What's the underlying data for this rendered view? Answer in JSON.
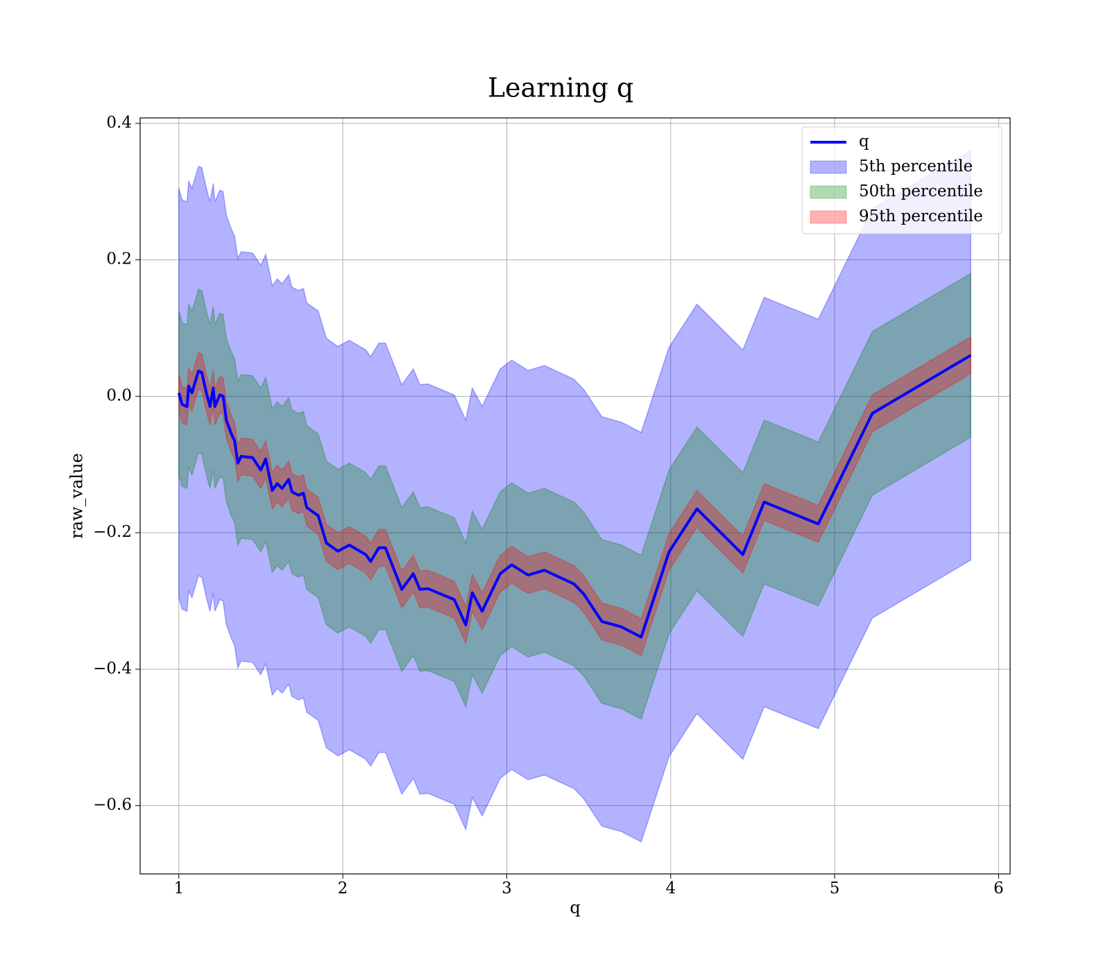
{
  "chart_data": {
    "type": "line_band",
    "title": "Learning q",
    "xlabel": "q",
    "ylabel": "raw_value",
    "x": [
      1.0,
      1.02,
      1.05,
      1.06,
      1.08,
      1.12,
      1.14,
      1.17,
      1.19,
      1.21,
      1.22,
      1.25,
      1.27,
      1.29,
      1.32,
      1.34,
      1.36,
      1.38,
      1.45,
      1.5,
      1.53,
      1.57,
      1.6,
      1.63,
      1.67,
      1.69,
      1.73,
      1.76,
      1.78,
      1.85,
      1.9,
      1.97,
      2.04,
      2.14,
      2.17,
      2.22,
      2.26,
      2.36,
      2.43,
      2.47,
      2.52,
      2.68,
      2.75,
      2.79,
      2.85,
      2.96,
      3.03,
      3.13,
      3.23,
      3.41,
      3.47,
      3.58,
      3.7,
      3.82,
      3.99,
      4.16,
      4.44,
      4.57,
      4.9,
      5.23,
      5.83
    ],
    "series": [
      {
        "name": "q",
        "color": "#0000ff",
        "values": [
          0.005,
          -0.012,
          -0.015,
          0.015,
          0.005,
          0.037,
          0.035,
          0.003,
          -0.015,
          0.012,
          -0.015,
          0.002,
          0.0,
          -0.035,
          -0.055,
          -0.065,
          -0.098,
          -0.088,
          -0.09,
          -0.108,
          -0.092,
          -0.138,
          -0.128,
          -0.135,
          -0.122,
          -0.14,
          -0.145,
          -0.142,
          -0.163,
          -0.175,
          -0.215,
          -0.227,
          -0.218,
          -0.232,
          -0.242,
          -0.222,
          -0.222,
          -0.283,
          -0.26,
          -0.283,
          -0.282,
          -0.298,
          -0.335,
          -0.288,
          -0.315,
          -0.26,
          -0.247,
          -0.262,
          -0.255,
          -0.275,
          -0.29,
          -0.33,
          -0.338,
          -0.353,
          -0.228,
          -0.165,
          -0.232,
          -0.155,
          -0.187,
          -0.025,
          0.06
        ]
      }
    ],
    "bands": [
      {
        "name": "5th percentile",
        "color": "#0000ff",
        "upper": [
          0.305,
          0.288,
          0.285,
          0.315,
          0.305,
          0.337,
          0.335,
          0.303,
          0.285,
          0.312,
          0.285,
          0.302,
          0.3,
          0.265,
          0.245,
          0.235,
          0.202,
          0.212,
          0.21,
          0.192,
          0.208,
          0.162,
          0.172,
          0.165,
          0.178,
          0.16,
          0.155,
          0.158,
          0.137,
          0.125,
          0.085,
          0.073,
          0.082,
          0.068,
          0.058,
          0.078,
          0.078,
          0.017,
          0.04,
          0.017,
          0.018,
          0.002,
          -0.035,
          0.012,
          -0.015,
          0.04,
          0.053,
          0.038,
          0.045,
          0.025,
          0.01,
          -0.03,
          -0.038,
          -0.053,
          0.072,
          0.135,
          0.068,
          0.145,
          0.113,
          0.275,
          0.36
        ],
        "lower": [
          -0.295,
          -0.312,
          -0.315,
          -0.285,
          -0.295,
          -0.263,
          -0.265,
          -0.297,
          -0.315,
          -0.288,
          -0.315,
          -0.298,
          -0.3,
          -0.335,
          -0.355,
          -0.365,
          -0.398,
          -0.388,
          -0.39,
          -0.408,
          -0.392,
          -0.438,
          -0.428,
          -0.435,
          -0.422,
          -0.44,
          -0.445,
          -0.442,
          -0.463,
          -0.475,
          -0.515,
          -0.527,
          -0.518,
          -0.532,
          -0.542,
          -0.522,
          -0.522,
          -0.583,
          -0.56,
          -0.583,
          -0.582,
          -0.598,
          -0.635,
          -0.588,
          -0.615,
          -0.56,
          -0.547,
          -0.562,
          -0.555,
          -0.575,
          -0.59,
          -0.63,
          -0.638,
          -0.653,
          -0.528,
          -0.465,
          -0.532,
          -0.455,
          -0.487,
          -0.325,
          -0.24
        ]
      },
      {
        "name": "50th percentile",
        "color": "#008000",
        "upper": [
          0.125,
          0.108,
          0.105,
          0.135,
          0.125,
          0.157,
          0.155,
          0.123,
          0.105,
          0.132,
          0.105,
          0.122,
          0.12,
          0.085,
          0.065,
          0.055,
          0.022,
          0.032,
          0.03,
          0.012,
          0.028,
          -0.018,
          -0.008,
          -0.015,
          -0.002,
          -0.02,
          -0.025,
          -0.022,
          -0.043,
          -0.055,
          -0.095,
          -0.107,
          -0.098,
          -0.112,
          -0.122,
          -0.102,
          -0.102,
          -0.163,
          -0.14,
          -0.163,
          -0.162,
          -0.178,
          -0.215,
          -0.168,
          -0.195,
          -0.14,
          -0.127,
          -0.142,
          -0.135,
          -0.155,
          -0.17,
          -0.21,
          -0.218,
          -0.233,
          -0.108,
          -0.045,
          -0.112,
          -0.035,
          -0.067,
          0.095,
          0.18
        ],
        "lower": [
          -0.115,
          -0.132,
          -0.135,
          -0.105,
          -0.115,
          -0.083,
          -0.085,
          -0.117,
          -0.135,
          -0.108,
          -0.135,
          -0.118,
          -0.12,
          -0.155,
          -0.175,
          -0.185,
          -0.218,
          -0.208,
          -0.21,
          -0.228,
          -0.212,
          -0.258,
          -0.248,
          -0.255,
          -0.242,
          -0.26,
          -0.265,
          -0.262,
          -0.283,
          -0.295,
          -0.335,
          -0.347,
          -0.338,
          -0.352,
          -0.362,
          -0.342,
          -0.342,
          -0.403,
          -0.38,
          -0.403,
          -0.402,
          -0.418,
          -0.455,
          -0.408,
          -0.435,
          -0.38,
          -0.367,
          -0.382,
          -0.375,
          -0.395,
          -0.41,
          -0.45,
          -0.458,
          -0.473,
          -0.348,
          -0.285,
          -0.352,
          -0.275,
          -0.307,
          -0.145,
          -0.06
        ]
      },
      {
        "name": "95th percentile",
        "color": "#ff0000",
        "upper": [
          0.032,
          0.015,
          0.012,
          0.042,
          0.032,
          0.064,
          0.062,
          0.03,
          0.012,
          0.039,
          0.012,
          0.029,
          0.027,
          -0.008,
          -0.028,
          -0.038,
          -0.071,
          -0.061,
          -0.063,
          -0.081,
          -0.065,
          -0.111,
          -0.101,
          -0.108,
          -0.095,
          -0.113,
          -0.118,
          -0.115,
          -0.136,
          -0.148,
          -0.188,
          -0.2,
          -0.191,
          -0.205,
          -0.215,
          -0.195,
          -0.195,
          -0.256,
          -0.233,
          -0.256,
          -0.255,
          -0.271,
          -0.308,
          -0.261,
          -0.288,
          -0.233,
          -0.22,
          -0.235,
          -0.228,
          -0.248,
          -0.263,
          -0.303,
          -0.311,
          -0.326,
          -0.201,
          -0.138,
          -0.205,
          -0.128,
          -0.16,
          0.002,
          0.087
        ],
        "lower": [
          -0.022,
          -0.039,
          -0.042,
          -0.012,
          -0.022,
          0.01,
          0.008,
          -0.024,
          -0.042,
          -0.015,
          -0.042,
          -0.025,
          -0.027,
          -0.062,
          -0.082,
          -0.092,
          -0.125,
          -0.115,
          -0.117,
          -0.135,
          -0.119,
          -0.165,
          -0.155,
          -0.162,
          -0.149,
          -0.167,
          -0.172,
          -0.169,
          -0.19,
          -0.202,
          -0.242,
          -0.254,
          -0.245,
          -0.259,
          -0.269,
          -0.249,
          -0.249,
          -0.31,
          -0.287,
          -0.31,
          -0.309,
          -0.325,
          -0.362,
          -0.315,
          -0.342,
          -0.287,
          -0.274,
          -0.289,
          -0.282,
          -0.302,
          -0.317,
          -0.357,
          -0.365,
          -0.38,
          -0.255,
          -0.192,
          -0.259,
          -0.182,
          -0.214,
          -0.052,
          0.033
        ]
      }
    ],
    "band_alpha": 0.3,
    "xlim": [
      0.764,
      6.07
    ],
    "xticks": [
      1,
      2,
      3,
      4,
      5,
      6
    ],
    "ylim": [
      -0.7,
      0.408
    ],
    "yticks": [
      {
        "value": -0.6,
        "label": "−0.6"
      },
      {
        "value": -0.4,
        "label": "−0.4"
      },
      {
        "value": -0.2,
        "label": "−0.2"
      },
      {
        "value": 0.0,
        "label": "0.0"
      },
      0.2,
      0.4
    ],
    "grid": true,
    "legend": "upper right"
  }
}
